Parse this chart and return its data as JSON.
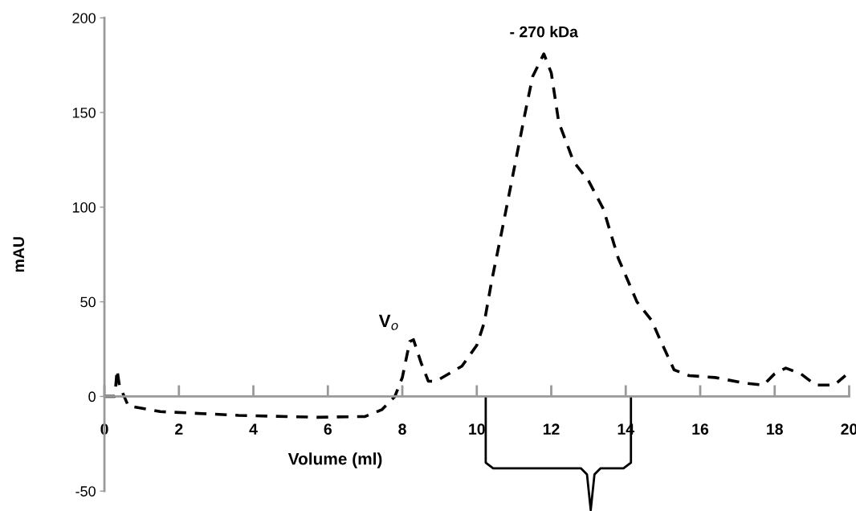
{
  "chart_data": {
    "type": "line",
    "xlabel": "Volume (ml)",
    "ylabel": "mAU",
    "xlim": [
      0,
      20
    ],
    "xticks": [
      0,
      2,
      4,
      6,
      8,
      10,
      12,
      14,
      16,
      18,
      20
    ],
    "ylim": [
      -50,
      200
    ],
    "yticks": [
      -50,
      0,
      50,
      100,
      150,
      200
    ],
    "grid": false,
    "legend": false,
    "line_style": "dashed",
    "marker": "none",
    "series": [
      {
        "color": "#000000",
        "x": [
          0,
          0.28,
          0.34,
          0.4,
          0.64,
          1.5,
          3.6,
          5.7,
          7.0,
          7.45,
          7.8,
          8.0,
          8.2,
          8.3,
          8.5,
          8.7,
          8.9,
          9.6,
          10.0,
          10.2,
          10.4,
          10.7,
          11.0,
          11.3,
          11.5,
          11.8,
          12.0,
          12.2,
          12.6,
          13.0,
          13.4,
          13.8,
          14.3,
          14.7,
          14.9,
          15.3,
          15.7,
          16.4,
          17.2,
          17.7,
          18.0,
          18.3,
          18.7,
          19.1,
          19.6,
          19.9
        ],
        "values": [
          0,
          0,
          14,
          6,
          -5,
          -8,
          -10,
          -11,
          -10.6,
          -7,
          0,
          10,
          29,
          30,
          18,
          8,
          8,
          16,
          27,
          39,
          61,
          90,
          120,
          150,
          169,
          181,
          171,
          145,
          124,
          114,
          99,
          73,
          50,
          40,
          31,
          14,
          11,
          10,
          7,
          6,
          12,
          15,
          12,
          6,
          6,
          11
        ]
      }
    ],
    "annotations": [
      {
        "text": "- 270 kDa",
        "x": 11.8,
        "y": 181
      },
      {
        "text": "V$_{o}$",
        "x": 8.3,
        "y": 30
      }
    ]
  }
}
